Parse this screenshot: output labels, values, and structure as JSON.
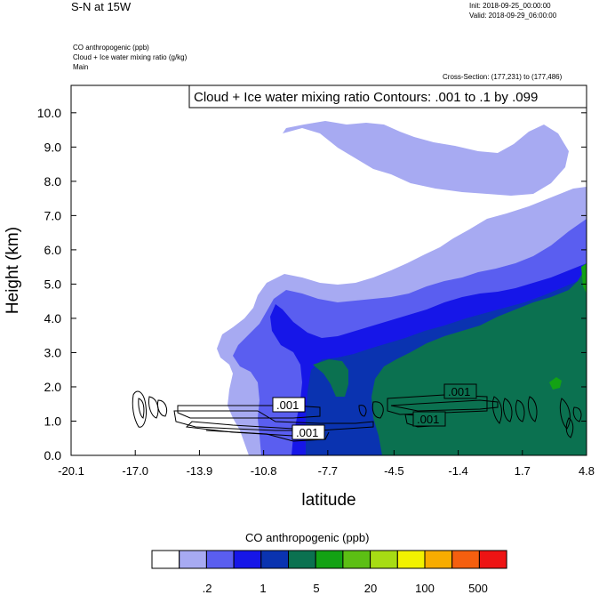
{
  "header": {
    "title": "S-N at 15W",
    "init": "Init: 2018-09-25_00:00:00",
    "valid": "Valid: 2018-09-29_06:00:00",
    "field1": "CO anthropogenic   (ppb)",
    "field2": "Cloud + Ice water mixing ratio   (g/kg)",
    "field3": "Main",
    "cross_section": "Cross-Section: (177,231) to (177,486)"
  },
  "chart_data": {
    "type": "heatmap",
    "title": "",
    "contour_label": "Cloud + Ice water mixing ratio Contours: .001 to .1 by .099",
    "xlabel": "latitude",
    "ylabel": "Height (km)",
    "xlim": [
      -20.1,
      4.8
    ],
    "ylim": [
      0.0,
      10.8
    ],
    "x_ticks": [
      "-20.1",
      "-17.0",
      "-13.9",
      "-10.8",
      "-7.7",
      "-4.5",
      "-1.4",
      "1.7",
      "4.8"
    ],
    "y_ticks": [
      "0.0",
      "1.0",
      "2.0",
      "3.0",
      "4.0",
      "5.0",
      "6.0",
      "7.0",
      "8.0",
      "9.0",
      "10.0"
    ],
    "contour_labels": [
      ".001",
      ".001",
      ".001",
      ".001"
    ],
    "colorbar": {
      "title": "CO anthropogenic  (ppb)",
      "colors": [
        "#ffffff",
        "#a7aaf2",
        "#5a5ef0",
        "#1616e8",
        "#0a33b0",
        "#0b7150",
        "#13a214",
        "#5cbf14",
        "#a7dc14",
        "#f2f200",
        "#f8ac00",
        "#f55f0f",
        "#ee1414"
      ],
      "labels": [
        ".2",
        "1",
        "5",
        "20",
        "100",
        "500"
      ]
    }
  }
}
